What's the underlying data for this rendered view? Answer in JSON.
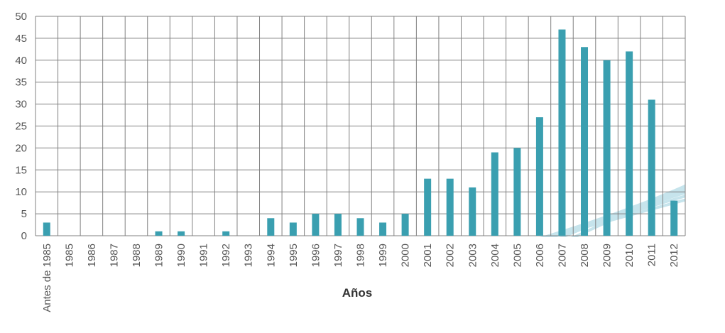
{
  "chart_data": {
    "type": "bar",
    "xlabel": "Años",
    "ylabel": "",
    "ylim": [
      0,
      50
    ],
    "yticks": [
      0,
      5,
      10,
      15,
      20,
      25,
      30,
      35,
      40,
      45,
      50
    ],
    "grid": true,
    "categories": [
      "Antes de 1985",
      "1985",
      "1986",
      "1987",
      "1988",
      "1989",
      "1990",
      "1991",
      "1992",
      "1993",
      "1994",
      "1995",
      "1996",
      "1997",
      "1998",
      "1999",
      "2000",
      "2001",
      "2002",
      "2003",
      "2004",
      "2005",
      "2006",
      "2007",
      "2008",
      "2009",
      "2010",
      "2011",
      "2012"
    ],
    "values": [
      3,
      0,
      0,
      0,
      0,
      1,
      1,
      0,
      1,
      0,
      4,
      3,
      5,
      5,
      4,
      3,
      5,
      13,
      13,
      11,
      19,
      20,
      27,
      47,
      43,
      40,
      42,
      31,
      8
    ],
    "bar_color": "#3a9fb0",
    "grid_color": "#808080",
    "stripe_color": "#c6e4ec"
  }
}
